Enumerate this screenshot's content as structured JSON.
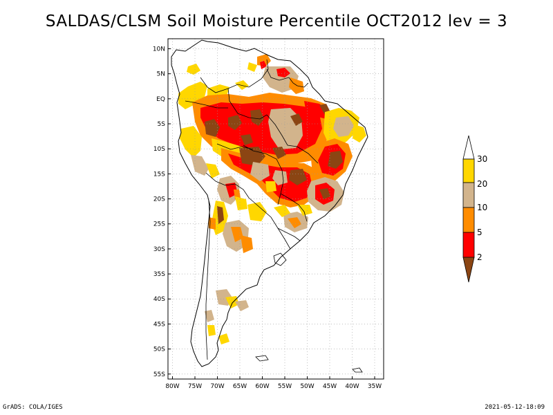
{
  "title": "SALDAS/CLSM Soil Moisture Percentile OCT2012 lev = 3",
  "map": {
    "region": "South America",
    "lat_ticks": [
      "10N",
      "5N",
      "EQ",
      "5S",
      "10S",
      "15S",
      "20S",
      "25S",
      "30S",
      "35S",
      "40S",
      "45S",
      "50S",
      "55S"
    ],
    "lat_values": [
      10,
      5,
      0,
      -5,
      -10,
      -15,
      -20,
      -25,
      -30,
      -35,
      -40,
      -45,
      -50,
      -55
    ],
    "lon_ticks": [
      "80W",
      "75W",
      "70W",
      "65W",
      "60W",
      "55W",
      "50W",
      "45W",
      "40W",
      "35W"
    ],
    "lon_values": [
      -80,
      -75,
      -70,
      -65,
      -60,
      -55,
      -50,
      -45,
      -40,
      -35
    ],
    "lon_range": [
      -81,
      -33
    ],
    "lat_range": [
      -56,
      12
    ]
  },
  "legend": {
    "labels": [
      "2",
      "5",
      "10",
      "20",
      "30"
    ],
    "colors": {
      "below_2": "#8b4513",
      "2_5": "#ff0000",
      "5_10": "#ff8c00",
      "10_20": "#d2b48c",
      "20_30": "#ffd700",
      "above_30": "#ffffff"
    }
  },
  "footer": {
    "left": "GrADS: COLA/IGES",
    "right": "2021-05-12-18:09"
  }
}
